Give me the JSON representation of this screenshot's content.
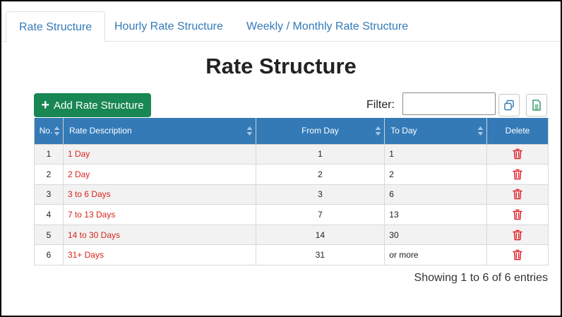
{
  "tabs": [
    {
      "label": "Rate Structure",
      "active": true
    },
    {
      "label": "Hourly Rate Structure",
      "active": false
    },
    {
      "label": "Weekly / Monthly Rate Structure",
      "active": false
    }
  ],
  "page_title": "Rate Structure",
  "toolbar": {
    "add_label": "Add Rate Structure",
    "filter_label": "Filter:",
    "filter_value": "",
    "copy_icon": "copy-icon",
    "excel_icon": "excel-icon"
  },
  "colors": {
    "accent": "#337ab7",
    "add_button": "#198754",
    "description_text": "#d9251c",
    "delete_icon": "#e01b24"
  },
  "table": {
    "headers": {
      "no": "No.",
      "description": "Rate Description",
      "from": "From Day",
      "to": "To Day",
      "delete": "Delete"
    },
    "rows": [
      {
        "no": "1",
        "description": "1 Day",
        "from": "1",
        "to": "1"
      },
      {
        "no": "2",
        "description": "2 Day",
        "from": "2",
        "to": "2"
      },
      {
        "no": "3",
        "description": "3 to 6 Days",
        "from": "3",
        "to": "6"
      },
      {
        "no": "4",
        "description": "7 to 13 Days",
        "from": "7",
        "to": "13"
      },
      {
        "no": "5",
        "description": "14 to 30 Days",
        "from": "14",
        "to": "30"
      },
      {
        "no": "6",
        "description": "31+ Days",
        "from": "31",
        "to": "or more"
      }
    ]
  },
  "footer": {
    "showing": "Showing 1 to 6 of 6 entries"
  }
}
